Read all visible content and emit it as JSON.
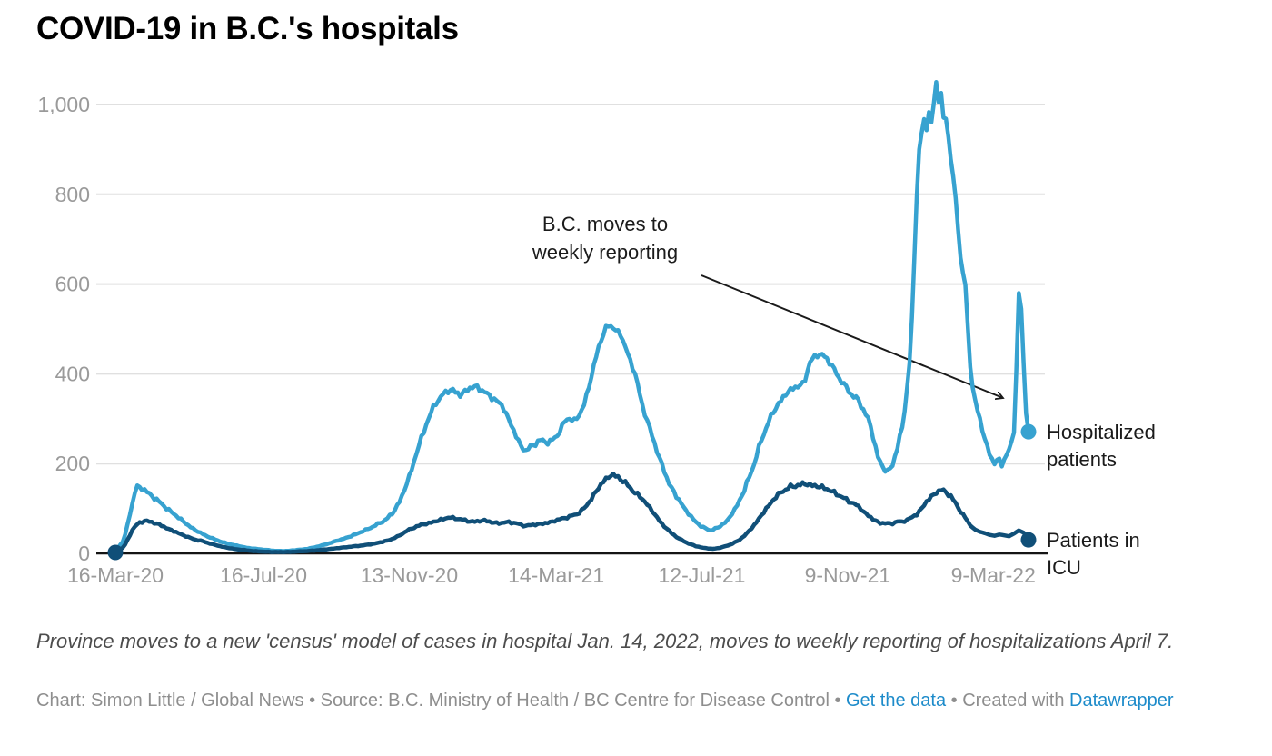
{
  "title": "COVID-19 in B.C.'s hospitals",
  "colors": {
    "hospitalized_line": "#37a2d0",
    "icu_line": "#104f78",
    "gridline": "#e0e0e0",
    "axis_line": "#141414",
    "tick_text": "#9a9a9a",
    "annotation_text": "#1b1b1b",
    "link_blue": "#1d8bca"
  },
  "chart_data": {
    "type": "line",
    "title": "COVID-19 in B.C.'s hospitals",
    "xlabel": "",
    "ylabel": "",
    "ylim": [
      0,
      1050
    ],
    "grid": "horizontal",
    "x_unit": "days since 16-Mar-2020",
    "x_ticks": [
      {
        "day": 0,
        "label": "16-Mar-20"
      },
      {
        "day": 122,
        "label": "16-Jul-20"
      },
      {
        "day": 242,
        "label": "13-Nov-20"
      },
      {
        "day": 363,
        "label": "14-Mar-21"
      },
      {
        "day": 483,
        "label": "12-Jul-21"
      },
      {
        "day": 603,
        "label": "9-Nov-21"
      },
      {
        "day": 723,
        "label": "9-Mar-22"
      }
    ],
    "y_ticks": [
      {
        "value": 0,
        "label": "0"
      },
      {
        "value": 200,
        "label": "200"
      },
      {
        "value": 400,
        "label": "400"
      },
      {
        "value": 600,
        "label": "600"
      },
      {
        "value": 800,
        "label": "800"
      },
      {
        "value": 1000,
        "label": "1,000"
      }
    ],
    "annotation": {
      "line1": "B.C. moves to",
      "line2": "weekly reporting"
    },
    "series": [
      {
        "name": "Hospitalized patients",
        "color": "#37a2d0",
        "points": [
          [
            0,
            4
          ],
          [
            7,
            30
          ],
          [
            14,
            110
          ],
          [
            17,
            150
          ],
          [
            21,
            146
          ],
          [
            25,
            139
          ],
          [
            32,
            124
          ],
          [
            39,
            108
          ],
          [
            46,
            92
          ],
          [
            53,
            78
          ],
          [
            60,
            62
          ],
          [
            67,
            50
          ],
          [
            74,
            40
          ],
          [
            81,
            32
          ],
          [
            88,
            25
          ],
          [
            95,
            20
          ],
          [
            102,
            16
          ],
          [
            109,
            12
          ],
          [
            116,
            10
          ],
          [
            123,
            8
          ],
          [
            130,
            6
          ],
          [
            137,
            5
          ],
          [
            144,
            6
          ],
          [
            151,
            8
          ],
          [
            158,
            10
          ],
          [
            165,
            14
          ],
          [
            172,
            19
          ],
          [
            179,
            25
          ],
          [
            186,
            31
          ],
          [
            193,
            37
          ],
          [
            200,
            45
          ],
          [
            207,
            53
          ],
          [
            214,
            62
          ],
          [
            221,
            72
          ],
          [
            228,
            88
          ],
          [
            235,
            120
          ],
          [
            242,
            170
          ],
          [
            249,
            232
          ],
          [
            256,
            288
          ],
          [
            263,
            332
          ],
          [
            270,
            355
          ],
          [
            277,
            366
          ],
          [
            284,
            352
          ],
          [
            291,
            368
          ],
          [
            298,
            371
          ],
          [
            305,
            357
          ],
          [
            312,
            344
          ],
          [
            319,
            328
          ],
          [
            326,
            286
          ],
          [
            333,
            243
          ],
          [
            338,
            228
          ],
          [
            343,
            240
          ],
          [
            350,
            252
          ],
          [
            357,
            247
          ],
          [
            364,
            262
          ],
          [
            371,
            300
          ],
          [
            378,
            296
          ],
          [
            385,
            320
          ],
          [
            392,
            395
          ],
          [
            399,
            470
          ],
          [
            405,
            508
          ],
          [
            410,
            503
          ],
          [
            416,
            488
          ],
          [
            422,
            445
          ],
          [
            428,
            400
          ],
          [
            434,
            330
          ],
          [
            441,
            270
          ],
          [
            448,
            213
          ],
          [
            455,
            161
          ],
          [
            462,
            127
          ],
          [
            469,
            99
          ],
          [
            476,
            75
          ],
          [
            483,
            59
          ],
          [
            490,
            51
          ],
          [
            497,
            58
          ],
          [
            504,
            73
          ],
          [
            511,
            101
          ],
          [
            518,
            141
          ],
          [
            525,
            191
          ],
          [
            532,
            252
          ],
          [
            539,
            301
          ],
          [
            546,
            333
          ],
          [
            553,
            358
          ],
          [
            560,
            371
          ],
          [
            567,
            377
          ],
          [
            572,
            428
          ],
          [
            578,
            441
          ],
          [
            582,
            445
          ],
          [
            586,
            431
          ],
          [
            591,
            417
          ],
          [
            596,
            389
          ],
          [
            601,
            374
          ],
          [
            606,
            354
          ],
          [
            611,
            344
          ],
          [
            616,
            321
          ],
          [
            620,
            299
          ],
          [
            624,
            261
          ],
          [
            628,
            215
          ],
          [
            632,
            191
          ],
          [
            636,
            183
          ],
          [
            640,
            196
          ],
          [
            644,
            236
          ],
          [
            648,
            281
          ],
          [
            651,
            341
          ],
          [
            654,
            425
          ],
          [
            656,
            520
          ],
          [
            658,
            661
          ],
          [
            660,
            800
          ],
          [
            662,
            898
          ],
          [
            664,
            938
          ],
          [
            666,
            963
          ],
          [
            668,
            944
          ],
          [
            670,
            988
          ],
          [
            672,
            957
          ],
          [
            674,
            1004
          ],
          [
            676,
            1048
          ],
          [
            678,
            1006
          ],
          [
            680,
            1029
          ],
          [
            682,
            966
          ],
          [
            684,
            971
          ],
          [
            686,
            929
          ],
          [
            688,
            877
          ],
          [
            690,
            841
          ],
          [
            692,
            787
          ],
          [
            694,
            726
          ],
          [
            696,
            661
          ],
          [
            698,
            624
          ],
          [
            700,
            598
          ],
          [
            702,
            500
          ],
          [
            704,
            420
          ],
          [
            706,
            372
          ],
          [
            708,
            340
          ],
          [
            710,
            318
          ],
          [
            712,
            298
          ],
          [
            714,
            277
          ],
          [
            716,
            257
          ],
          [
            718,
            237
          ],
          [
            721,
            213
          ],
          [
            724,
            201
          ],
          [
            727,
            212
          ],
          [
            730,
            198
          ],
          [
            733,
            214
          ],
          [
            736,
            231
          ],
          [
            739,
            254
          ],
          [
            741,
            297
          ],
          [
            743,
            520
          ],
          [
            744,
            580
          ],
          [
            745,
            594
          ],
          [
            746,
            545
          ],
          [
            748,
            420
          ],
          [
            750,
            312
          ],
          [
            752,
            271
          ]
        ]
      },
      {
        "name": "Patients in ICU",
        "color": "#104f78",
        "points": [
          [
            0,
            2
          ],
          [
            7,
            14
          ],
          [
            14,
            52
          ],
          [
            19,
            68
          ],
          [
            24,
            72
          ],
          [
            30,
            70
          ],
          [
            37,
            63
          ],
          [
            44,
            54
          ],
          [
            51,
            46
          ],
          [
            58,
            38
          ],
          [
            65,
            31
          ],
          [
            72,
            27
          ],
          [
            79,
            21
          ],
          [
            86,
            16
          ],
          [
            93,
            12
          ],
          [
            100,
            9
          ],
          [
            107,
            7
          ],
          [
            114,
            5
          ],
          [
            121,
            4
          ],
          [
            128,
            3
          ],
          [
            135,
            3
          ],
          [
            142,
            3
          ],
          [
            149,
            4
          ],
          [
            156,
            5
          ],
          [
            163,
            6
          ],
          [
            170,
            8
          ],
          [
            177,
            10
          ],
          [
            184,
            12
          ],
          [
            191,
            14
          ],
          [
            198,
            16
          ],
          [
            205,
            18
          ],
          [
            212,
            21
          ],
          [
            219,
            25
          ],
          [
            226,
            30
          ],
          [
            233,
            38
          ],
          [
            240,
            50
          ],
          [
            247,
            59
          ],
          [
            254,
            65
          ],
          [
            261,
            69
          ],
          [
            268,
            75
          ],
          [
            275,
            80
          ],
          [
            282,
            77
          ],
          [
            289,
            73
          ],
          [
            296,
            70
          ],
          [
            303,
            74
          ],
          [
            310,
            69
          ],
          [
            317,
            67
          ],
          [
            324,
            70
          ],
          [
            331,
            66
          ],
          [
            338,
            61
          ],
          [
            345,
            64
          ],
          [
            352,
            66
          ],
          [
            359,
            70
          ],
          [
            366,
            76
          ],
          [
            373,
            81
          ],
          [
            380,
            87
          ],
          [
            387,
            102
          ],
          [
            394,
            130
          ],
          [
            401,
            158
          ],
          [
            408,
            175
          ],
          [
            415,
            169
          ],
          [
            422,
            151
          ],
          [
            429,
            133
          ],
          [
            436,
            116
          ],
          [
            443,
            91
          ],
          [
            450,
            66
          ],
          [
            457,
            47
          ],
          [
            464,
            33
          ],
          [
            471,
            23
          ],
          [
            478,
            16
          ],
          [
            485,
            12
          ],
          [
            492,
            10
          ],
          [
            499,
            13
          ],
          [
            506,
            19
          ],
          [
            513,
            28
          ],
          [
            520,
            44
          ],
          [
            527,
            66
          ],
          [
            534,
            92
          ],
          [
            541,
            117
          ],
          [
            548,
            136
          ],
          [
            555,
            147
          ],
          [
            562,
            152
          ],
          [
            569,
            155
          ],
          [
            576,
            150
          ],
          [
            583,
            147
          ],
          [
            590,
            138
          ],
          [
            597,
            128
          ],
          [
            604,
            116
          ],
          [
            609,
            110
          ],
          [
            614,
            99
          ],
          [
            619,
            86
          ],
          [
            624,
            76
          ],
          [
            629,
            68
          ],
          [
            634,
            67
          ],
          [
            639,
            66
          ],
          [
            644,
            71
          ],
          [
            648,
            70
          ],
          [
            652,
            75
          ],
          [
            656,
            80
          ],
          [
            660,
            87
          ],
          [
            664,
            100
          ],
          [
            668,
            115
          ],
          [
            672,
            126
          ],
          [
            676,
            136
          ],
          [
            680,
            141
          ],
          [
            684,
            137
          ],
          [
            688,
            127
          ],
          [
            692,
            111
          ],
          [
            696,
            94
          ],
          [
            700,
            79
          ],
          [
            704,
            62
          ],
          [
            708,
            53
          ],
          [
            712,
            48
          ],
          [
            716,
            45
          ],
          [
            720,
            41
          ],
          [
            724,
            39
          ],
          [
            728,
            42
          ],
          [
            732,
            40
          ],
          [
            736,
            38
          ],
          [
            740,
            44
          ],
          [
            744,
            51
          ],
          [
            748,
            46
          ],
          [
            752,
            30
          ]
        ]
      }
    ],
    "legend_position": "right-of-line-ends"
  },
  "labels": {
    "hospitalized": [
      "Hospitalized",
      "patients"
    ],
    "icu": [
      "Patients in",
      "ICU"
    ]
  },
  "notes": {
    "text": "Province moves to a new 'census' model of cases in hospital Jan. 14, 2022, moves to weekly reporting of hospitalizations April 7."
  },
  "credits": {
    "text1": "Chart: Simon Little / Global News • Source: B.C. Ministry of Health / BC Centre for Disease Control • ",
    "link1": "Get the data",
    "text2": " • Created with ",
    "link2": "Datawrapper"
  }
}
